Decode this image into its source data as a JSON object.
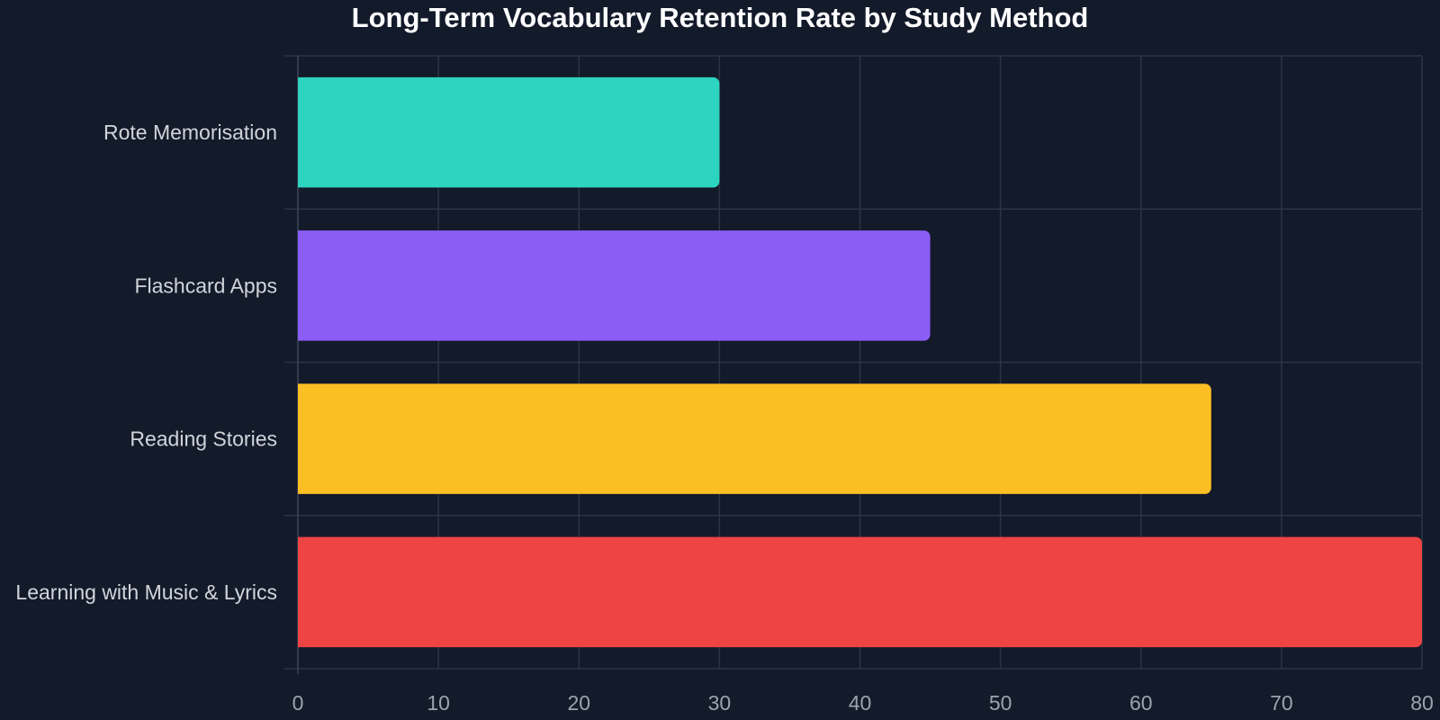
{
  "chart_data": {
    "type": "bar",
    "orientation": "horizontal",
    "title": "Long-Term Vocabulary Retention Rate by Study Method",
    "xlabel": "",
    "ylabel": "",
    "categories": [
      "Rote Memorisation",
      "Flashcard Apps",
      "Reading Stories",
      "Learning with Music & Lyrics"
    ],
    "values": [
      30,
      45,
      65,
      80
    ],
    "colors": [
      "#2dd4bf",
      "#8b5cf6",
      "#fbbf24",
      "#ef4444"
    ],
    "xlim": [
      0,
      80
    ],
    "xticks": [
      0,
      10,
      20,
      30,
      40,
      50,
      60,
      70,
      80
    ],
    "grid": true,
    "legend": "none"
  }
}
